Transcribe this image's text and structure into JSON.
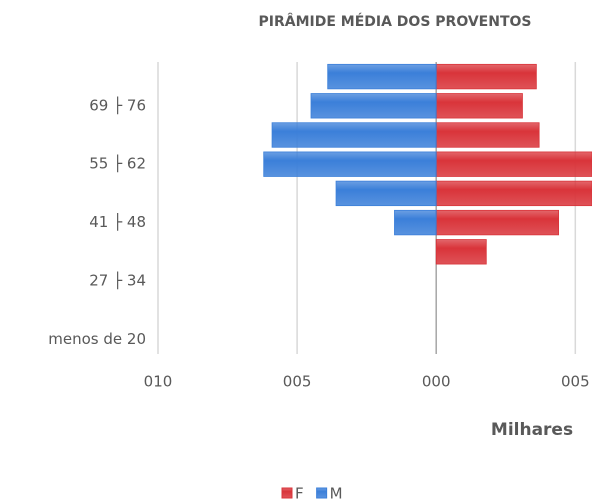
{
  "chart_data": {
    "type": "pyramid",
    "title": "PIRÂMIDE MÉDIA DOS PROVENTOS",
    "xlabel": "Milhares",
    "categories": [
      "menos de 20",
      null,
      "27 ├ 34",
      null,
      "41 ├ 48",
      null,
      "55 ├ 62",
      null,
      "69 ├ 76",
      null
    ],
    "series": [
      {
        "name": "F",
        "color": "#d9343a",
        "values": [
          0,
          0,
          0,
          1.8,
          4.4,
          5.6,
          5.6,
          3.7,
          3.1,
          3.6
        ]
      },
      {
        "name": "M",
        "color": "#3b7fd9",
        "values": [
          0,
          0,
          0,
          0,
          -1.5,
          -3.6,
          -6.2,
          -5.9,
          -4.5,
          -3.9
        ]
      }
    ],
    "xlim": [
      -10,
      5.6
    ],
    "xticks": [
      {
        "value": -10,
        "label": "010"
      },
      {
        "value": -5,
        "label": "005"
      },
      {
        "value": 0,
        "label": "000"
      },
      {
        "value": 5,
        "label": "005"
      }
    ],
    "grid": true,
    "legend": "bottom"
  }
}
